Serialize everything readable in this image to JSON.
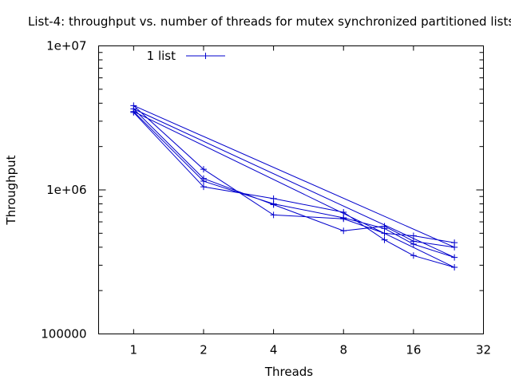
{
  "chart_data": {
    "type": "line",
    "title": "List-4: throughput vs. number of threads for mutex synchronized partitioned lists",
    "xlabel": "Threads",
    "ylabel": "Throughput",
    "x_scale": "log2",
    "y_scale": "log10",
    "xlim": [
      0.707,
      32
    ],
    "ylim": [
      100000,
      10000000
    ],
    "x_ticks": [
      1,
      2,
      4,
      8,
      16,
      32
    ],
    "x_tick_labels": [
      "1",
      "2",
      "4",
      "8",
      "16",
      "32"
    ],
    "y_ticks": [
      100000,
      1000000,
      10000000
    ],
    "y_tick_labels": [
      "100000",
      "1e+06",
      "1e+07"
    ],
    "grid": false,
    "legend_position": "top-left",
    "series": [
      {
        "name": "1 list",
        "color": "#0000cc",
        "marker": "plus",
        "x": [
          1,
          2,
          4,
          8,
          12,
          16,
          24,
          1,
          2,
          4,
          8,
          12,
          16,
          24,
          1,
          2,
          4,
          8,
          12,
          16,
          24,
          1,
          2,
          4,
          8,
          12,
          16,
          24
        ],
        "y": [
          3450000,
          1050000,
          870000,
          700000,
          450000,
          350000,
          290000,
          3500000,
          1150000,
          800000,
          640000,
          540000,
          420000,
          340000,
          3650000,
          1200000,
          790000,
          520000,
          560000,
          440000,
          400000,
          3850000,
          1390000,
          670000,
          630000,
          500000,
          480000,
          430000
        ]
      }
    ]
  }
}
